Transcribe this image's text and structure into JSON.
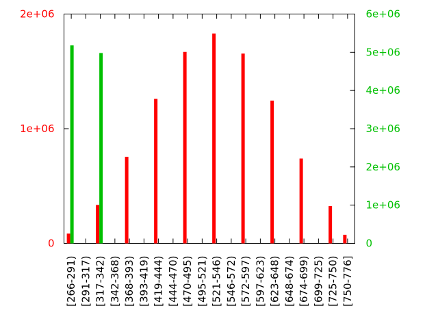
{
  "chart_data": {
    "type": "bar",
    "categories": [
      "[266-291)",
      "[291-317)",
      "[317-342)",
      "[342-368)",
      "[368-393)",
      "[393-419)",
      "[419-444)",
      "[444-470)",
      "[470-495)",
      "[495-521)",
      "[521-546)",
      "[546-572)",
      "[572-597)",
      "[597-623)",
      "[623-648)",
      "[648-674)",
      "[674-699)",
      "[699-725)",
      "[725-750)",
      "[750-776]"
    ],
    "series": [
      {
        "axis": "left",
        "color": "#ff0000",
        "values": [
          85000,
          0,
          335000,
          0,
          755000,
          0,
          1260000,
          0,
          1670000,
          0,
          1830000,
          0,
          1655000,
          0,
          1245000,
          0,
          740000,
          0,
          325000,
          75000
        ]
      },
      {
        "axis": "right",
        "color": "#00c000",
        "values": [
          5180000,
          0,
          4980000,
          0,
          0,
          0,
          0,
          0,
          0,
          0,
          0,
          0,
          0,
          0,
          0,
          0,
          0,
          0,
          0,
          0
        ]
      }
    ],
    "y_left": {
      "ticks": [
        "0",
        "1e+06",
        "2e+06"
      ],
      "tick_values": [
        0,
        1000000,
        2000000
      ],
      "ylim": [
        0,
        2000000
      ]
    },
    "y_right": {
      "ticks": [
        "0",
        "1e+06",
        "2e+06",
        "3e+06",
        "4e+06",
        "5e+06",
        "6e+06"
      ],
      "tick_values": [
        0,
        1000000,
        2000000,
        3000000,
        4000000,
        5000000,
        6000000
      ],
      "ylim": [
        0,
        6000000
      ]
    },
    "title": "",
    "xlabel": "",
    "ylabel": "",
    "grid": false,
    "legend": "none"
  }
}
